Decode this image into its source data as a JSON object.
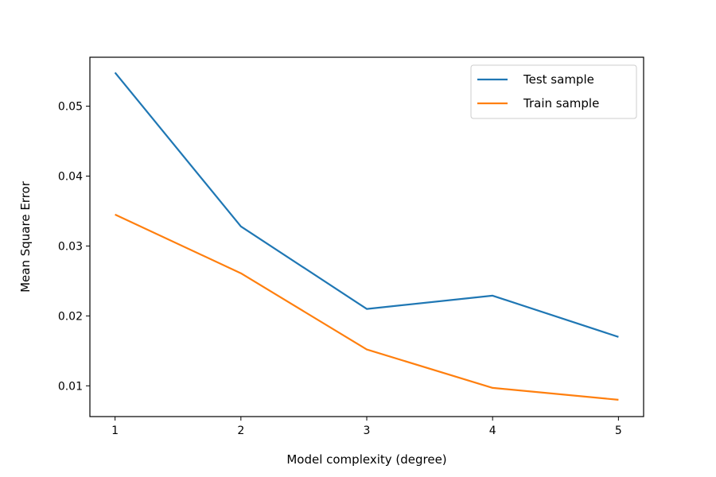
{
  "chart_data": {
    "type": "line",
    "title": "",
    "xlabel": "Model complexity (degree)",
    "ylabel": "Mean Square Error",
    "x": [
      1,
      2,
      3,
      4,
      5
    ],
    "x_ticks": [
      "1",
      "2",
      "3",
      "4",
      "5"
    ],
    "y_ticks": [
      0.01,
      0.02,
      0.03,
      0.04,
      0.05
    ],
    "y_tick_labels": [
      "0.01",
      "0.02",
      "0.03",
      "0.04",
      "0.05"
    ],
    "xlim": [
      0.8,
      5.2
    ],
    "ylim": [
      0.0056,
      0.057
    ],
    "grid": false,
    "legend_position": "upper right",
    "series": [
      {
        "name": "Test sample",
        "color": "#1f77b4",
        "values": [
          0.0548,
          0.0328,
          0.021,
          0.0229,
          0.017
        ]
      },
      {
        "name": "Train sample",
        "color": "#ff7f0e",
        "values": [
          0.0345,
          0.0261,
          0.0152,
          0.0097,
          0.008
        ]
      }
    ]
  }
}
